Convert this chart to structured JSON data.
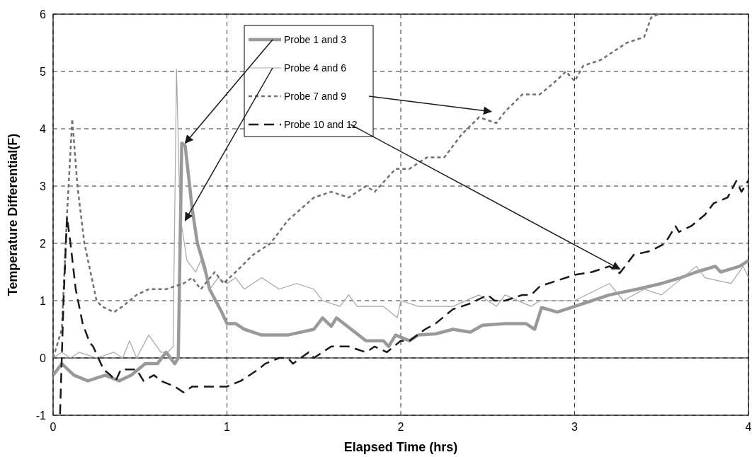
{
  "chart_data": {
    "type": "line",
    "xlabel": "Elapsed Time (hrs)",
    "ylabel": "Temperature Differential(F)",
    "xlim": [
      0,
      4
    ],
    "xticks": [
      0,
      1,
      2,
      3,
      4
    ],
    "ylim": [
      -1,
      6
    ],
    "yticks": [
      -1,
      0,
      1,
      2,
      3,
      4,
      5,
      6
    ],
    "grid": true,
    "legend": "top",
    "series": [
      {
        "name": "Probe 1 and 3",
        "color": "#999999",
        "line_style": "solid",
        "x": [
          0,
          0.05,
          0.12,
          0.2,
          0.3,
          0.38,
          0.45,
          0.53,
          0.6,
          0.65,
          0.7,
          0.72,
          0.74,
          0.76,
          0.8,
          0.83,
          0.87,
          0.9,
          0.97,
          1.0,
          1.05,
          1.1,
          1.2,
          1.35,
          1.5,
          1.55,
          1.6,
          1.63,
          1.8,
          1.9,
          1.93,
          1.97,
          2.05,
          2.1,
          2.2,
          2.3,
          2.4,
          2.47,
          2.6,
          2.72,
          2.77,
          2.81,
          2.9,
          3.0,
          3.1,
          3.2,
          3.36,
          3.5,
          3.61,
          3.7,
          3.81,
          3.84,
          3.95,
          4.0
        ],
        "values": [
          -0.3,
          -0.1,
          -0.3,
          -0.4,
          -0.3,
          -0.4,
          -0.3,
          -0.1,
          -0.1,
          0.1,
          -0.1,
          0,
          3.75,
          3.7,
          2.6,
          2.0,
          1.6,
          1.2,
          0.8,
          0.6,
          0.6,
          0.5,
          0.4,
          0.4,
          0.5,
          0.7,
          0.55,
          0.7,
          0.3,
          0.3,
          0.2,
          0.4,
          0.3,
          0.4,
          0.42,
          0.5,
          0.45,
          0.57,
          0.6,
          0.6,
          0.5,
          0.88,
          0.8,
          0.9,
          1.0,
          1.1,
          1.2,
          1.3,
          1.4,
          1.5,
          1.6,
          1.5,
          1.6,
          1.7
        ]
      },
      {
        "name": "Probe 4 and 6",
        "color": "#a6a6a6",
        "line_style": "solid",
        "x": [
          0,
          0.05,
          0.1,
          0.15,
          0.25,
          0.35,
          0.4,
          0.44,
          0.48,
          0.55,
          0.62,
          0.66,
          0.69,
          0.71,
          0.73,
          0.77,
          0.82,
          0.85,
          0.9,
          0.95,
          1.0,
          1.05,
          1.1,
          1.2,
          1.3,
          1.4,
          1.5,
          1.55,
          1.65,
          1.7,
          1.75,
          1.9,
          1.98,
          2.0,
          2.1,
          2.3,
          2.45,
          2.55,
          2.6,
          2.75,
          2.8,
          3.0,
          3.2,
          3.28,
          3.4,
          3.5,
          3.7,
          3.75,
          3.9,
          3.97,
          4.0
        ],
        "values": [
          0,
          0.1,
          0,
          0.1,
          0,
          0.1,
          0,
          0.3,
          0,
          0.4,
          0.1,
          0.1,
          0.2,
          5.04,
          2.5,
          1.7,
          1.5,
          1.7,
          1.2,
          1.4,
          1.3,
          1.4,
          1.2,
          1.4,
          1.2,
          1.3,
          1.2,
          1.0,
          0.9,
          1.1,
          0.9,
          0.9,
          0.7,
          1.0,
          0.9,
          0.9,
          1.1,
          0.9,
          1.1,
          0.9,
          1.0,
          1.0,
          1.3,
          1.0,
          1.2,
          1.1,
          1.6,
          1.4,
          1.3,
          1.6,
          1.4
        ]
      },
      {
        "name": "Probe 7 and 9",
        "color": "#707070",
        "line_style": "dotted",
        "x": [
          0,
          0.05,
          0.08,
          0.11,
          0.14,
          0.18,
          0.25,
          0.28,
          0.35,
          0.4,
          0.48,
          0.55,
          0.65,
          0.75,
          0.8,
          0.85,
          0.93,
          0.98,
          1.05,
          1.15,
          1.25,
          1.35,
          1.5,
          1.6,
          1.7,
          1.8,
          1.85,
          1.97,
          2.05,
          2.15,
          2.25,
          2.35,
          2.45,
          2.55,
          2.6,
          2.7,
          2.8,
          2.88,
          2.95,
          3.0,
          3.05,
          3.15,
          3.3,
          3.4,
          3.44,
          3.48
        ],
        "values": [
          0,
          0.5,
          2.5,
          4.17,
          3.0,
          2.0,
          1.0,
          0.9,
          0.8,
          0.9,
          1.1,
          1.2,
          1.2,
          1.3,
          1.4,
          1.2,
          1.5,
          1.3,
          1.5,
          1.8,
          2.0,
          2.4,
          2.8,
          2.9,
          2.8,
          3.0,
          2.9,
          3.3,
          3.3,
          3.5,
          3.5,
          3.9,
          4.2,
          4.1,
          4.3,
          4.6,
          4.6,
          4.8,
          5.0,
          4.83,
          5.1,
          5.2,
          5.5,
          5.6,
          5.94,
          6.0
        ]
      },
      {
        "name": "Probe 10 and 12",
        "color": "#1a1a1a",
        "line_style": "dashed",
        "x": [
          0.04,
          0.06,
          0.08,
          0.1,
          0.13,
          0.17,
          0.21,
          0.23,
          0.29,
          0.33,
          0.36,
          0.39,
          0.48,
          0.52,
          0.58,
          0.62,
          0.7,
          0.75,
          0.8,
          1.0,
          1.08,
          1.18,
          1.22,
          1.3,
          1.35,
          1.38,
          1.47,
          1.5,
          1.6,
          1.7,
          1.8,
          1.85,
          1.92,
          2.0,
          2.05,
          2.14,
          2.2,
          2.3,
          2.4,
          2.5,
          2.54,
          2.6,
          2.7,
          2.75,
          2.8,
          2.9,
          3.0,
          3.1,
          3.2,
          3.26,
          3.34,
          3.44,
          3.52,
          3.58,
          3.6,
          3.67,
          3.75,
          3.8,
          3.88,
          3.93,
          3.96,
          4.0
        ],
        "values": [
          -0.98,
          1.0,
          2.46,
          2.0,
          1.2,
          0.6,
          0.27,
          0.2,
          -0.2,
          -0.3,
          -0.4,
          -0.2,
          -0.2,
          -0.4,
          -0.3,
          -0.4,
          -0.5,
          -0.6,
          -0.5,
          -0.5,
          -0.4,
          -0.2,
          -0.1,
          0,
          0,
          -0.1,
          0.1,
          0,
          0.2,
          0.2,
          0.1,
          0.2,
          0.1,
          0.3,
          0.3,
          0.5,
          0.6,
          0.85,
          0.95,
          1.1,
          1.0,
          1.0,
          1.1,
          1.1,
          1.25,
          1.35,
          1.45,
          1.5,
          1.6,
          1.48,
          1.8,
          1.87,
          2.0,
          2.3,
          2.2,
          2.3,
          2.5,
          2.7,
          2.8,
          3.09,
          2.9,
          3.1
        ]
      }
    ]
  }
}
